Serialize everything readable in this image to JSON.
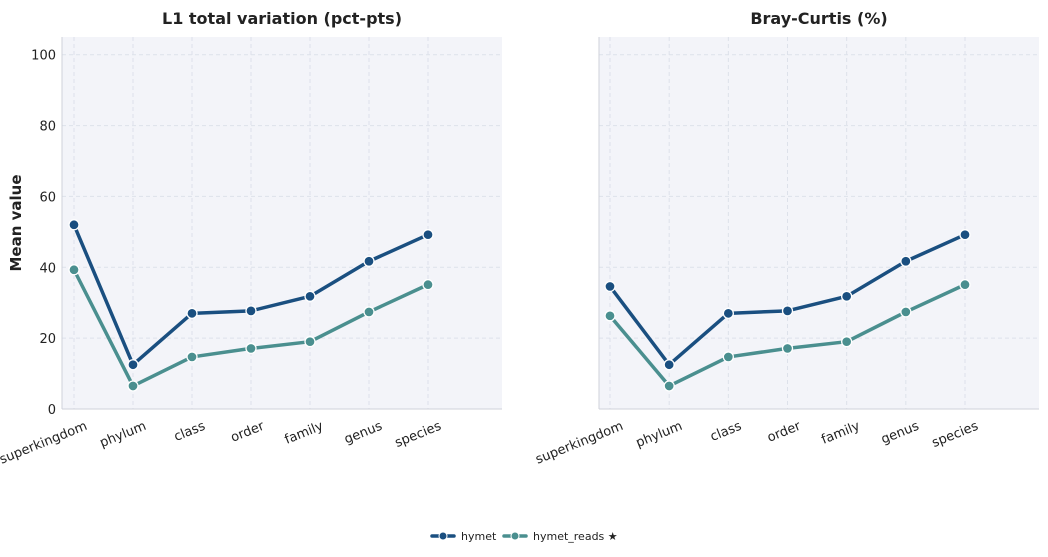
{
  "chart_data": [
    {
      "type": "line",
      "title": "L1 total variation (pct-pts)",
      "ylabel": "Mean value",
      "xlabel": "",
      "ylim": [
        0,
        105
      ],
      "yticks": [
        "0",
        "20",
        "40",
        "60",
        "80",
        "100"
      ],
      "categories": [
        "superkingdom",
        "phylum",
        "class",
        "order",
        "family",
        "genus",
        "species"
      ],
      "grid": true,
      "series": [
        {
          "name": "hymet",
          "color": "#1a4f80",
          "values": [
            52.0,
            12.5,
            27.0,
            27.7,
            31.8,
            41.7,
            49.2
          ]
        },
        {
          "name": "hymet_reads ★",
          "color": "#4a8f8f",
          "values": [
            39.3,
            6.5,
            14.7,
            17.1,
            19.0,
            27.4,
            35.1
          ]
        }
      ]
    },
    {
      "type": "line",
      "title": "Bray-Curtis (%)",
      "ylabel": "",
      "xlabel": "",
      "ylim": [
        0,
        105
      ],
      "categories": [
        "superkingdom",
        "phylum",
        "class",
        "order",
        "family",
        "genus",
        "species"
      ],
      "grid": true,
      "series": [
        {
          "name": "hymet",
          "color": "#1a4f80",
          "values": [
            34.6,
            12.5,
            27.0,
            27.7,
            31.8,
            41.7,
            49.2
          ]
        },
        {
          "name": "hymet_reads ★",
          "color": "#4a8f8f",
          "values": [
            26.3,
            6.5,
            14.7,
            17.1,
            19.0,
            27.4,
            35.1
          ]
        }
      ]
    }
  ],
  "legend": {
    "placement": "bottom-center",
    "items": [
      {
        "label": "hymet",
        "color": "#1a4f80"
      },
      {
        "label": "hymet_reads ★",
        "color": "#4a8f8f"
      }
    ]
  }
}
